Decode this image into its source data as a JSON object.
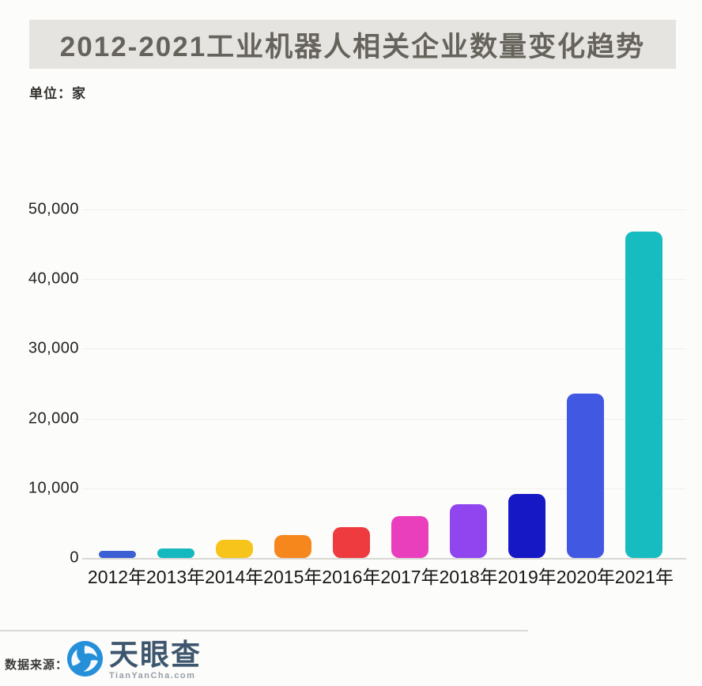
{
  "title": "2012-2021工业机器人相关企业数量变化趋势",
  "unit_label": "单位：家",
  "footer": {
    "source_label": "数据来源：",
    "logo_name": "天眼查",
    "logo_domain": "TianYanCha.com",
    "logo_blue": "#2590d9"
  },
  "chart_data": {
    "type": "bar",
    "title": "2012-2021工业机器人相关企业数量变化趋势",
    "unit": "家",
    "categories": [
      "2012年",
      "2013年",
      "2014年",
      "2015年",
      "2016年",
      "2017年",
      "2018年",
      "2019年",
      "2020年",
      "2021年"
    ],
    "values": [
      1000,
      1400,
      2600,
      3300,
      4400,
      6000,
      7700,
      9200,
      23600,
      46800
    ],
    "bar_colors": [
      "#3c5fd4",
      "#14b9c0",
      "#f6c41b",
      "#f5871c",
      "#ee3b3f",
      "#ea3fbd",
      "#9045ef",
      "#1617c5",
      "#4158e2",
      "#17bcc0"
    ],
    "ylabel": "",
    "xlabel": "",
    "ylim": [
      0,
      50000
    ],
    "y_ticks": {
      "values": [
        50000,
        40000,
        30000,
        20000,
        10000,
        0
      ],
      "labels": [
        "50,000",
        "40,000",
        "30,000",
        "20,000",
        "10,000",
        "0"
      ]
    },
    "grid": "horizontal-faint",
    "legend": "none"
  }
}
